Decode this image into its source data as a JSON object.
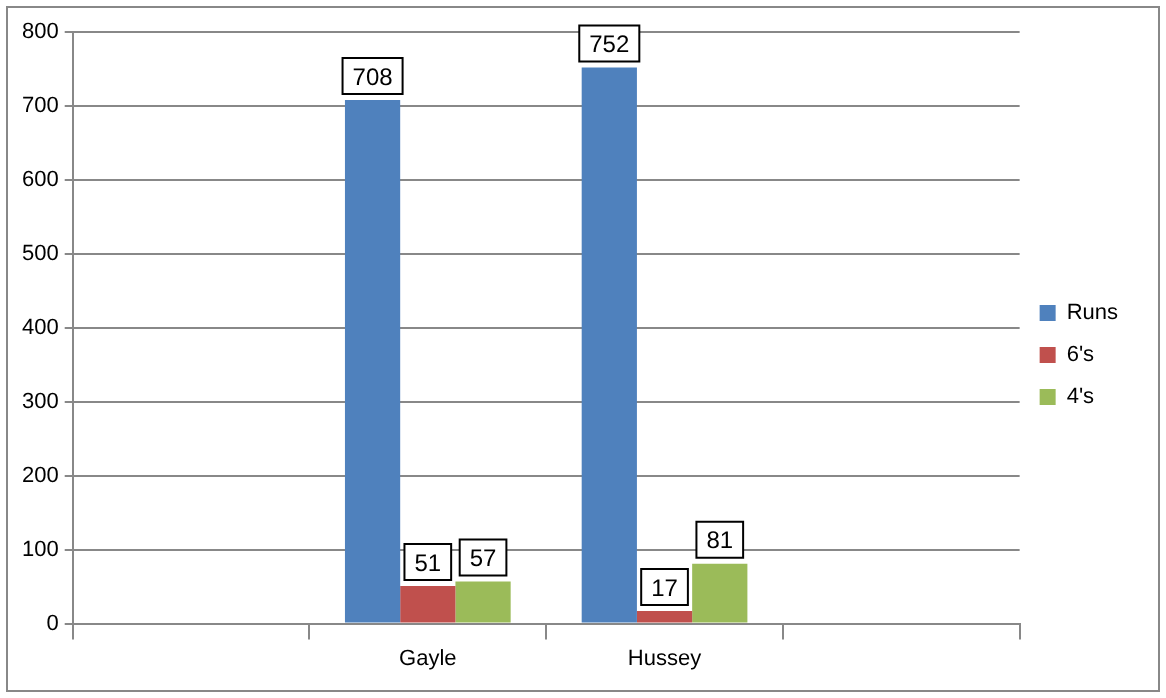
{
  "chart_data": {
    "type": "bar",
    "categories": [
      null,
      "Gayle",
      "Hussey",
      null
    ],
    "series": [
      {
        "name": "Runs",
        "color": "#4f81bd",
        "values": [
          null,
          708,
          752,
          null
        ]
      },
      {
        "name": "6's",
        "color": "#c0504d",
        "values": [
          null,
          51,
          17,
          null
        ]
      },
      {
        "name": "4's",
        "color": "#9bbb59",
        "values": [
          null,
          57,
          81,
          null
        ]
      }
    ],
    "ylim": [
      0,
      800
    ],
    "yticks": [
      0,
      100,
      200,
      300,
      400,
      500,
      600,
      700,
      800
    ],
    "grid": "y",
    "legend": "right",
    "data_labels": true
  }
}
